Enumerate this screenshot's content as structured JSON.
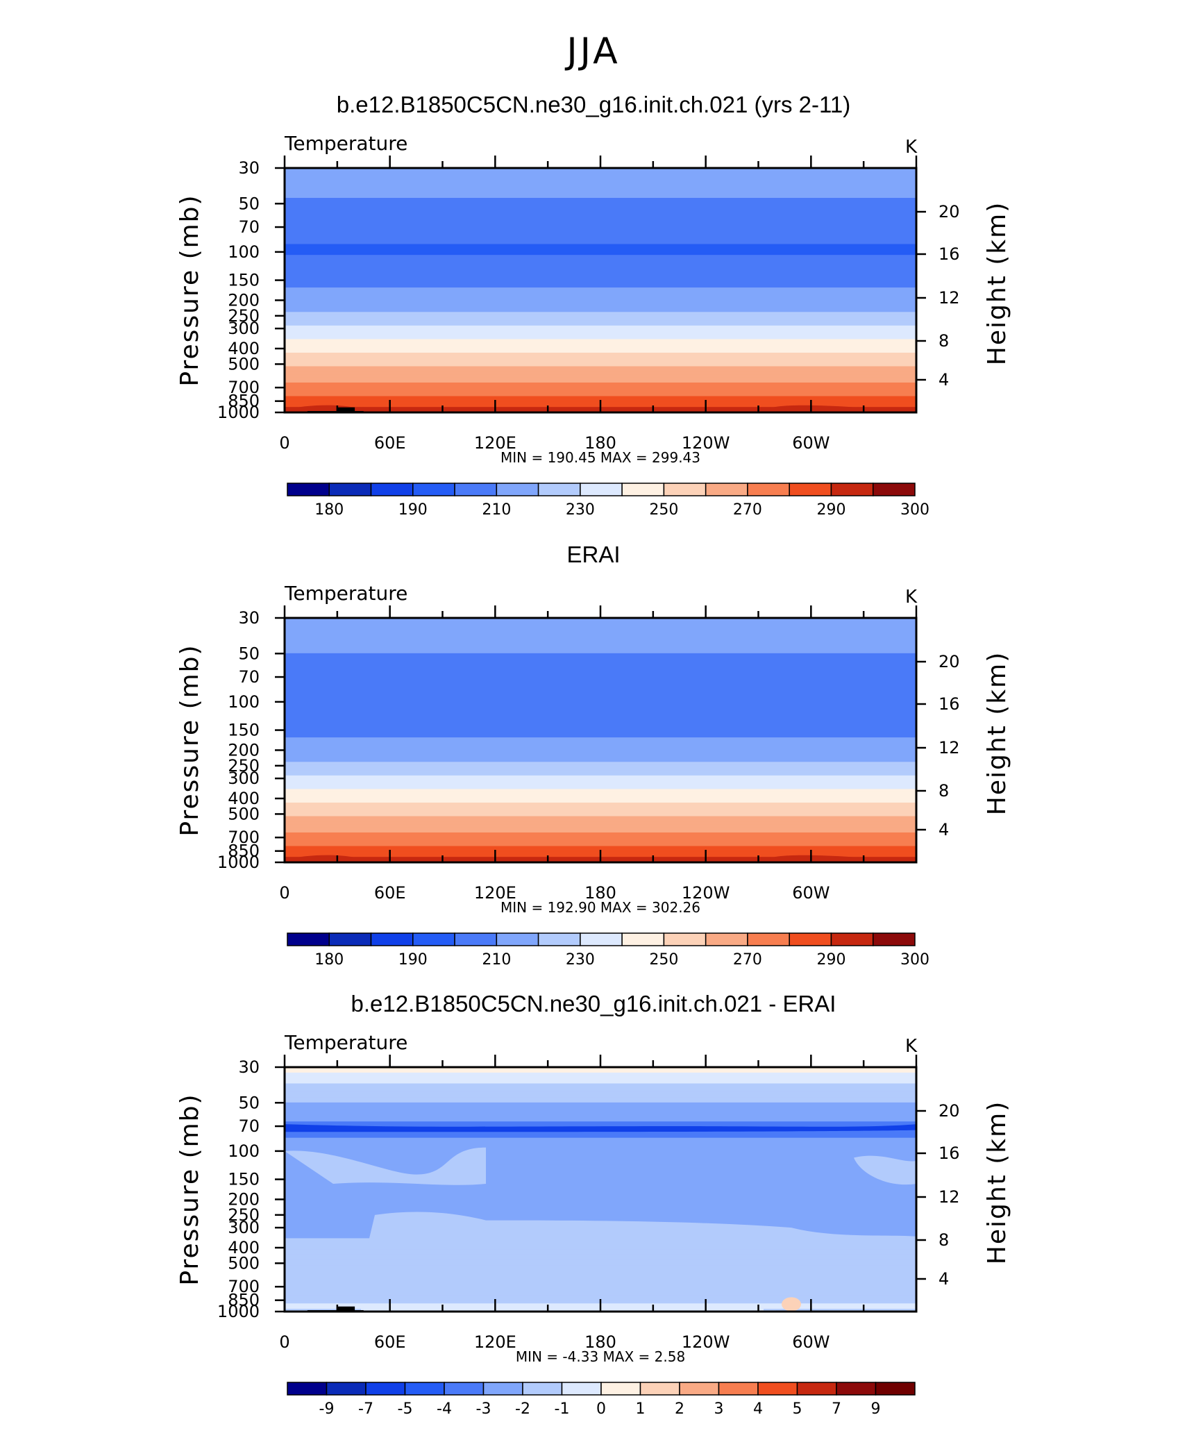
{
  "figure": {
    "title": "JJA"
  },
  "chart_data": [
    {
      "type": "heatmap",
      "title": "b.e12.B1850C5CN.ne30_g16.init.ch.021 (yrs 2-11)",
      "left_label": "Temperature",
      "right_label": "K",
      "ylabel": "Pressure (mb)",
      "ylabel_right": "Height (km)",
      "x_ticks": [
        "0",
        "60E",
        "120E",
        "180",
        "120W",
        "60W"
      ],
      "y_ticks": [
        "30",
        "50",
        "70",
        "100",
        "150",
        "200",
        "250",
        "300",
        "400",
        "500",
        "700",
        "850",
        "1000"
      ],
      "y_ticks_right": [
        "20",
        "16",
        "12",
        "8",
        "4"
      ],
      "stats": "MIN = 190.45   MAX = 299.43",
      "min": 190.45,
      "max": 299.43,
      "ylim": [
        1000,
        30
      ],
      "xlim": [
        0,
        360
      ],
      "y_scale": "log",
      "colorbar_labels": [
        "180",
        "190",
        "210",
        "230",
        "250",
        "270",
        "290",
        "300"
      ],
      "profile": [
        {
          "p": 30,
          "t": 217
        },
        {
          "p": 50,
          "t": 209
        },
        {
          "p": 70,
          "t": 202
        },
        {
          "p": 100,
          "t": 199
        },
        {
          "p": 150,
          "t": 207
        },
        {
          "p": 200,
          "t": 214
        },
        {
          "p": 250,
          "t": 222
        },
        {
          "p": 300,
          "t": 232
        },
        {
          "p": 400,
          "t": 247
        },
        {
          "p": 500,
          "t": 258
        },
        {
          "p": 700,
          "t": 274
        },
        {
          "p": 850,
          "t": 284
        },
        {
          "p": 1000,
          "t": 294
        }
      ]
    },
    {
      "type": "heatmap",
      "title": "ERAI",
      "left_label": "Temperature",
      "right_label": "K",
      "ylabel": "Pressure (mb)",
      "ylabel_right": "Height (km)",
      "x_ticks": [
        "0",
        "60E",
        "120E",
        "180",
        "120W",
        "60W"
      ],
      "y_ticks": [
        "30",
        "50",
        "70",
        "100",
        "150",
        "200",
        "250",
        "300",
        "400",
        "500",
        "700",
        "850",
        "1000"
      ],
      "y_ticks_right": [
        "20",
        "16",
        "12",
        "8",
        "4"
      ],
      "stats": "MIN = 192.90   MAX = 302.26",
      "min": 192.9,
      "max": 302.26,
      "ylim": [
        1000,
        30
      ],
      "xlim": [
        0,
        360
      ],
      "y_scale": "log",
      "colorbar_labels": [
        "180",
        "190",
        "210",
        "230",
        "250",
        "270",
        "290",
        "300"
      ],
      "profile": [
        {
          "p": 30,
          "t": 218
        },
        {
          "p": 50,
          "t": 210
        },
        {
          "p": 70,
          "t": 204
        },
        {
          "p": 100,
          "t": 200
        },
        {
          "p": 150,
          "t": 207
        },
        {
          "p": 200,
          "t": 214
        },
        {
          "p": 250,
          "t": 222
        },
        {
          "p": 300,
          "t": 232
        },
        {
          "p": 400,
          "t": 247
        },
        {
          "p": 500,
          "t": 258
        },
        {
          "p": 700,
          "t": 274
        },
        {
          "p": 850,
          "t": 285
        },
        {
          "p": 1000,
          "t": 296
        }
      ]
    },
    {
      "type": "heatmap",
      "title": "b.e12.B1850C5CN.ne30_g16.init.ch.021 - ERAI",
      "left_label": "Temperature",
      "right_label": "K",
      "ylabel": "Pressure (mb)",
      "ylabel_right": "Height (km)",
      "x_ticks": [
        "0",
        "60E",
        "120E",
        "180",
        "120W",
        "60W"
      ],
      "y_ticks": [
        "30",
        "50",
        "70",
        "100",
        "150",
        "200",
        "250",
        "300",
        "400",
        "500",
        "700",
        "850",
        "1000"
      ],
      "y_ticks_right": [
        "20",
        "16",
        "12",
        "8",
        "4"
      ],
      "stats": "MIN = -4.33   MAX = 2.58",
      "min": -4.33,
      "max": 2.58,
      "ylim": [
        1000,
        30
      ],
      "xlim": [
        0,
        360
      ],
      "y_scale": "log",
      "colorbar_labels": [
        "-9",
        "-7",
        "-5",
        "-4",
        "-3",
        "-2",
        "-1",
        "0",
        "1",
        "2",
        "3",
        "4",
        "5",
        "7",
        "9"
      ],
      "profile": [
        {
          "p": 30,
          "t": 0.5
        },
        {
          "p": 40,
          "t": -1.5
        },
        {
          "p": 60,
          "t": -2.5
        },
        {
          "p": 70,
          "t": -3.5
        },
        {
          "p": 100,
          "t": -2.5
        },
        {
          "p": 150,
          "t": -2.5
        },
        {
          "p": 200,
          "t": -2.5
        },
        {
          "p": 300,
          "t": -2.5
        },
        {
          "p": 400,
          "t": -1.5
        },
        {
          "p": 700,
          "t": -1.5
        },
        {
          "p": 850,
          "t": -1.5
        },
        {
          "p": 950,
          "t": -0.5
        },
        {
          "p": 1000,
          "t": -1.5
        }
      ]
    }
  ],
  "colors": {
    "temp_scale": [
      "#00008c",
      "#0a2bb8",
      "#1040e8",
      "#245cf5",
      "#4a7af8",
      "#80a6fb",
      "#b2cbfc",
      "#dde9fe",
      "#fef1e3",
      "#fcd2b8",
      "#f9aa85",
      "#f77e50",
      "#f04e1f",
      "#c62810",
      "#8c0a0a"
    ],
    "temp_levels": [
      180,
      185,
      190,
      200,
      210,
      220,
      230,
      240,
      250,
      260,
      270,
      280,
      290,
      295,
      300
    ],
    "diff_scale": [
      "#00008c",
      "#0a2bb8",
      "#1040e8",
      "#245cf5",
      "#4a7af8",
      "#80a6fb",
      "#b2cbfc",
      "#dde9fe",
      "#fef1e3",
      "#fcd2b8",
      "#f9aa85",
      "#f77e50",
      "#f04e1f",
      "#c62810",
      "#8c0a0a",
      "#700000"
    ],
    "diff_levels": [
      -9,
      -7,
      -5,
      -4,
      -3,
      -2,
      -1,
      0,
      1,
      2,
      3,
      4,
      5,
      7,
      9
    ],
    "topography": "#000000"
  }
}
